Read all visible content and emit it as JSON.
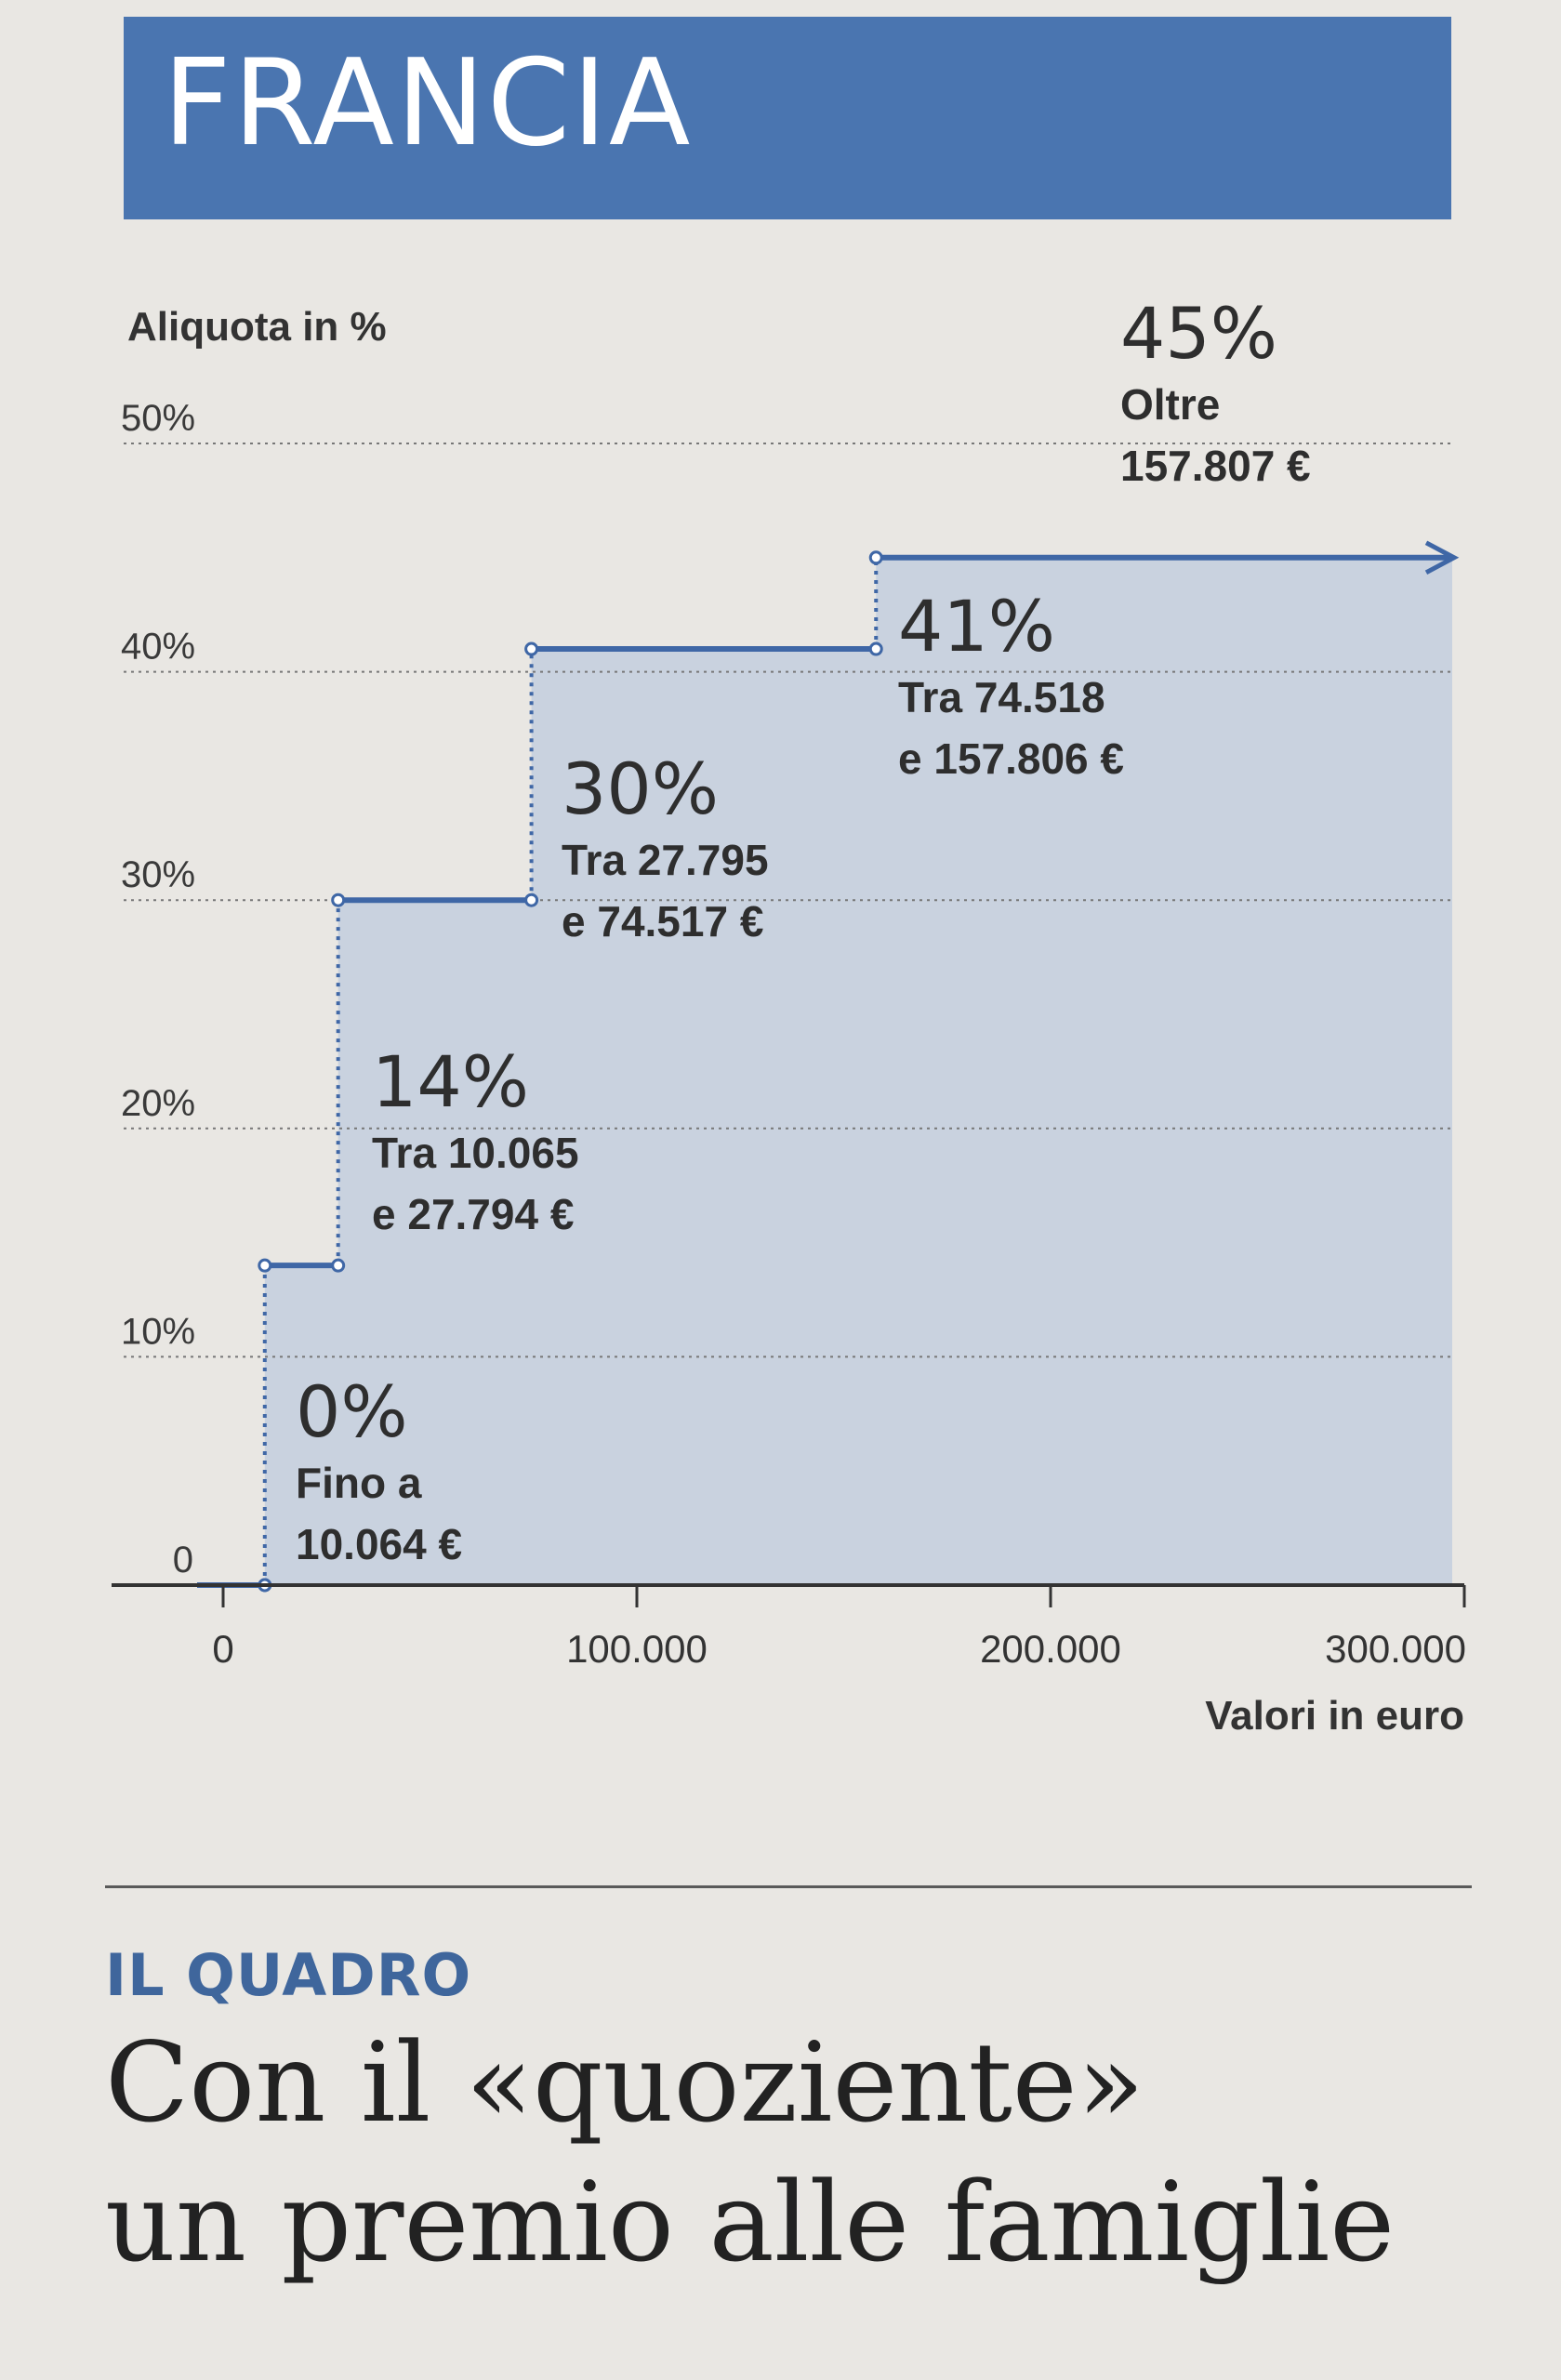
{
  "banner": {
    "title": "FRANCIA"
  },
  "chart_data": {
    "type": "step",
    "ylabel": "Aliquota in %",
    "xlabel": "Valori in euro",
    "ylim": [
      0,
      50
    ],
    "xlim": [
      0,
      300000
    ],
    "y_ticks": [
      {
        "value": 0,
        "label": "0"
      },
      {
        "value": 10,
        "label": "10%"
      },
      {
        "value": 20,
        "label": "20%"
      },
      {
        "value": 30,
        "label": "30%"
      },
      {
        "value": 40,
        "label": "40%"
      },
      {
        "value": 50,
        "label": "50%"
      }
    ],
    "x_ticks": [
      {
        "value": 0,
        "label": "0"
      },
      {
        "value": 100000,
        "label": "100.000"
      },
      {
        "value": 200000,
        "label": "200.000"
      },
      {
        "value": 300000,
        "label": "300.000"
      }
    ],
    "brackets": [
      {
        "from": 0,
        "to": 10064,
        "rate": 0,
        "rate_label": "0%",
        "desc": [
          "Fino a",
          "10.064 €"
        ]
      },
      {
        "from": 10065,
        "to": 27794,
        "rate": 14,
        "rate_label": "14%",
        "desc": [
          "Tra 10.065",
          "e 27.794 €"
        ]
      },
      {
        "from": 27795,
        "to": 74517,
        "rate": 30,
        "rate_label": "30%",
        "desc": [
          "Tra 27.795",
          "e 74.517 €"
        ]
      },
      {
        "from": 74518,
        "to": 157806,
        "rate": 41,
        "rate_label": "41%",
        "desc": [
          "Tra 74.518",
          "e 157.806 €"
        ]
      },
      {
        "from": 157807,
        "to": null,
        "rate": 45,
        "rate_label": "45%",
        "desc": [
          "Oltre",
          "157.807 €"
        ]
      }
    ],
    "colors": {
      "fill": "#c9d2df",
      "line": "#3f67a6",
      "grid": "#777777",
      "axis": "#333333"
    }
  },
  "section": {
    "kicker": "IL QUADRO",
    "headline_line1": "Con il «quoziente»",
    "headline_line2": "un premio alle famiglie"
  }
}
